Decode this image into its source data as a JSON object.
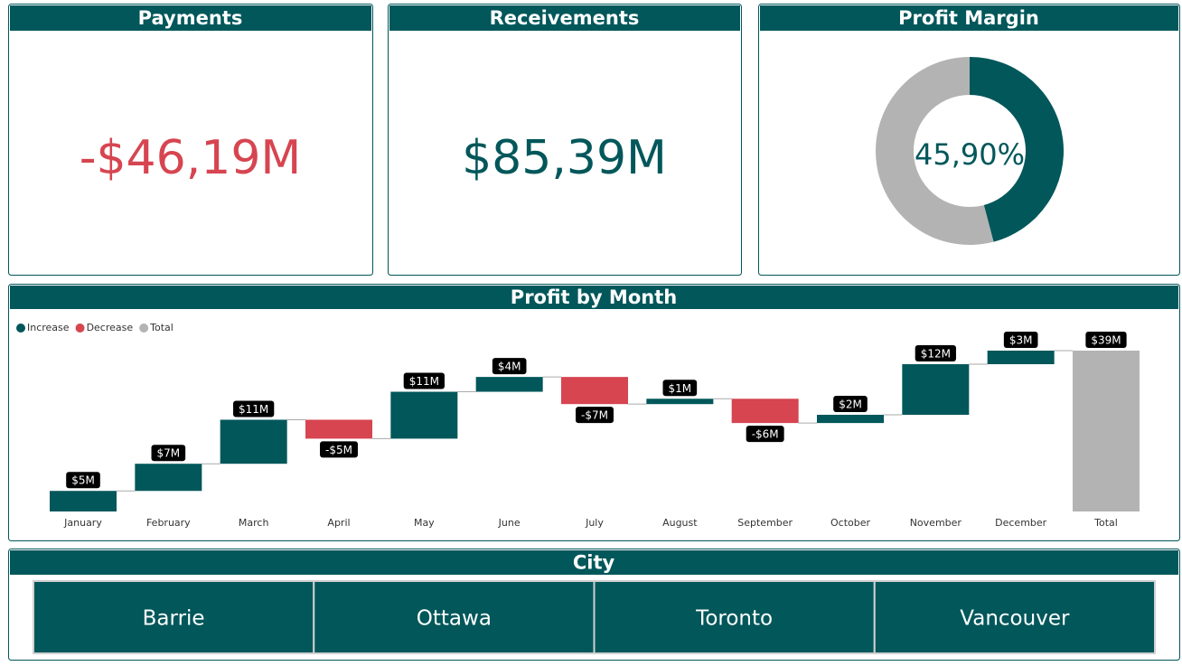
{
  "cards": [
    {
      "title": "Payments",
      "value": "-$46,19M",
      "color": "#d64550"
    },
    {
      "title": "Receivements",
      "value": "$85,39M",
      "color": "#01575a"
    }
  ],
  "chart_data": [
    {
      "type": "pie",
      "title": "Profit Margin",
      "values": [
        45.9,
        54.1
      ],
      "colors": [
        "#01575a",
        "#b3b3b3"
      ],
      "center_label": "45,90%",
      "hole": true
    },
    {
      "type": "waterfall",
      "title": "Profit by Month",
      "legend": [
        {
          "name": "Increase",
          "color": "#01575a"
        },
        {
          "name": "Decrease",
          "color": "#d64550"
        },
        {
          "name": "Total",
          "color": "#b3b3b3"
        }
      ],
      "categories": [
        "January",
        "February",
        "March",
        "April",
        "May",
        "June",
        "July",
        "August",
        "September",
        "October",
        "November",
        "December"
      ],
      "values": [
        5,
        6.6,
        10.7,
        -4.6,
        11.4,
        3.6,
        -6.6,
        1.3,
        -5.9,
        2,
        12.3,
        3.3
      ],
      "value_labels": [
        "$5M",
        "$7M",
        "$11M",
        "-$5M",
        "$11M",
        "$4M",
        "-$7M",
        "$1M",
        "-$6M",
        "$2M",
        "$12M",
        "$3M"
      ],
      "total": {
        "category": "Total",
        "value": 39.1,
        "value_label": "$39M"
      }
    }
  ],
  "slicer": {
    "title": "City",
    "items": [
      "Barrie",
      "Ottawa",
      "Toronto",
      "Vancouver"
    ]
  }
}
